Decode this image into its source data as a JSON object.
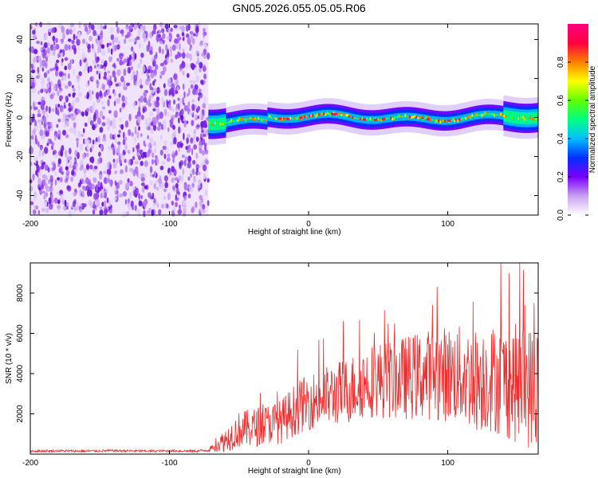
{
  "title": "GN05.2026.055.05.05.R06",
  "colors": {
    "snr_line": "#e83030",
    "noise_dots": "#8a3ce0",
    "plot_bg": "#ffffff",
    "axis": "#000000"
  },
  "colorbar": {
    "label": "Normalized spectral amplitude",
    "range": [
      0,
      1
    ],
    "ticks": [
      0.0,
      0.2,
      0.4,
      0.6,
      0.8
    ],
    "tick_labels": [
      "0.0",
      "0.2",
      "0.4",
      "0.6",
      "0.8"
    ],
    "stops": [
      "#ffffff",
      "#c8a0f0",
      "#7a00ff",
      "#0030ff",
      "#00c0ff",
      "#00ff80",
      "#60ff00",
      "#ffff00",
      "#ff8000",
      "#ff0040",
      "#ff0080"
    ]
  },
  "chart_data": [
    {
      "type": "heatmap",
      "title": "GN05.2026.055.05.05.R06",
      "xlabel": "Height of straight line (km)",
      "ylabel": "Frequency (Hz)",
      "xlim": [
        -200,
        165
      ],
      "ylim": [
        -50,
        48
      ],
      "xticks": [
        -200,
        -100,
        0,
        100
      ],
      "xtick_labels": [
        "-200",
        "-100",
        "0",
        "100"
      ],
      "yticks": [
        -40,
        -20,
        0,
        20,
        40
      ],
      "ytick_labels": [
        "-40",
        "-20",
        "0",
        "20",
        "40"
      ],
      "noise_region_x": [
        -200,
        -72
      ],
      "signal_region_x": [
        -72,
        165
      ],
      "signal_center_frequency": 0,
      "signal_band_halfwidth_hz": 5
    },
    {
      "type": "line",
      "xlabel": "Height of straight line (km)",
      "ylabel": "SNR (10 * v/v)",
      "xlim": [
        -200,
        165
      ],
      "ylim": [
        0,
        9500
      ],
      "xticks": [
        -200,
        -100,
        0,
        100
      ],
      "xtick_labels": [
        "-200",
        "-100",
        "0",
        "100"
      ],
      "yticks": [
        2000,
        4000,
        6000,
        8000
      ],
      "ytick_labels": [
        "2000",
        "4000",
        "6000",
        "8000"
      ],
      "series": [
        {
          "name": "SNR",
          "x": [
            -200,
            -180,
            -160,
            -140,
            -120,
            -100,
            -80,
            -72,
            -60,
            -50,
            -40,
            -30,
            -20,
            -10,
            0,
            10,
            20,
            30,
            40,
            50,
            60,
            70,
            80,
            90,
            100,
            110,
            120,
            130,
            140,
            150,
            160,
            165
          ],
          "y": [
            150,
            160,
            150,
            170,
            150,
            160,
            150,
            200,
            700,
            1200,
            1300,
            1500,
            1600,
            2200,
            2600,
            2800,
            3000,
            3200,
            3600,
            3700,
            3700,
            3800,
            3900,
            4000,
            4000,
            3900,
            3700,
            3800,
            3600,
            3500,
            3300,
            3200
          ],
          "spread": [
            60,
            60,
            60,
            60,
            60,
            60,
            60,
            80,
            600,
            900,
            1000,
            1000,
            1100,
            1300,
            1400,
            1500,
            1600,
            1700,
            1800,
            1900,
            2000,
            2100,
            2200,
            2300,
            2400,
            2500,
            2600,
            2700,
            2800,
            3000,
            3100,
            3200
          ]
        }
      ]
    }
  ]
}
